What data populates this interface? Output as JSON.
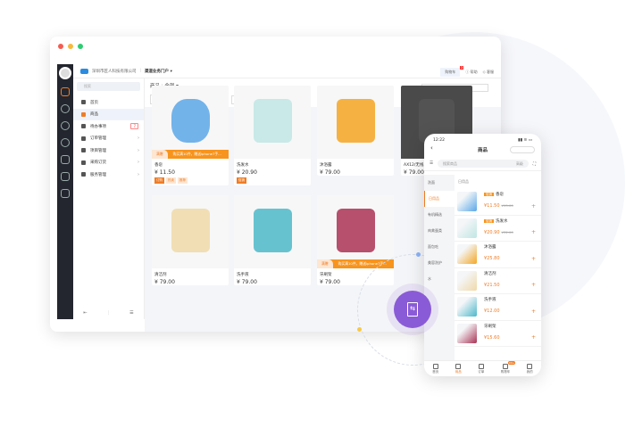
{
  "colors": {
    "accent": "#f07c24",
    "purple": "#8a5bd6",
    "rail": "#23262e"
  },
  "header": {
    "company": "深圳市匠人科技有限公司",
    "portal": "渠道业务门户 ▾",
    "cart": "购物车",
    "cart_badge": "2",
    "help": "帮助",
    "service": "客服"
  },
  "sidebar": {
    "search_placeholder": "搜索",
    "items": [
      {
        "label": "首页"
      },
      {
        "label": "商品"
      },
      {
        "label": "待办事项",
        "badge": "7"
      },
      {
        "label": "订单管理"
      },
      {
        "label": "项目管理"
      },
      {
        "label": "采购订货"
      },
      {
        "label": "服务管理"
      }
    ]
  },
  "main": {
    "title": "商品",
    "filter": "全部 ▾",
    "category_btn": "商品分类",
    "filter_btn": "筛选",
    "sort_label": "排序:",
    "sort_value": "商品名称 ▴",
    "search_placeholder": "搜索商品名称",
    "products": [
      {
        "name": "香皂",
        "price": "¥ 11.50",
        "tags": [
          "订购",
          "热卖",
          "推荐"
        ],
        "promo_tag": "满赠",
        "promo": "购买满10件，赠送iphone7手..."
      },
      {
        "name": "洗发水",
        "price": "¥ 20.90",
        "tags": [
          "促销"
        ]
      },
      {
        "name": "沐浴露",
        "price": "¥ 79.00",
        "tags": []
      },
      {
        "name": "AX12/无线...",
        "price": "¥ 79.00",
        "tags": []
      },
      {
        "name": "清洁剂",
        "price": "¥ 79.00",
        "tags": []
      },
      {
        "name": "洗手液",
        "price": "¥ 79.00",
        "tags": []
      },
      {
        "name": "牙刷架",
        "price": "¥ 79.00",
        "tags": [],
        "promo_tag": "满赠",
        "promo": "购买满10件，赠送iphone7手..."
      }
    ]
  },
  "phone": {
    "time": "12:22",
    "title": "商品",
    "search_placeholder": "搜索商品",
    "advanced": "高级",
    "section": "日用品",
    "categories": [
      "洗面",
      "日用品",
      "有机精选",
      "肉禽蛋类",
      "面包吃",
      "美容洗护",
      "水"
    ],
    "items": [
      {
        "name": "香皂",
        "tag": "促销",
        "price": "¥11.50",
        "old": "¥15.00"
      },
      {
        "name": "洗发水",
        "tag": "促销",
        "price": "¥20.90",
        "old": "¥32.00"
      },
      {
        "name": "沐浴露",
        "price": "¥25.80"
      },
      {
        "name": "清洁剂",
        "price": "¥21.50"
      },
      {
        "name": "洗手液",
        "price": "¥12.00"
      },
      {
        "name": "牙刷架",
        "price": "¥15.60"
      }
    ],
    "tabs": [
      {
        "label": "首页"
      },
      {
        "label": "商品"
      },
      {
        "label": "订单"
      },
      {
        "label": "购物车",
        "badge": "99+"
      },
      {
        "label": "我的"
      }
    ]
  }
}
